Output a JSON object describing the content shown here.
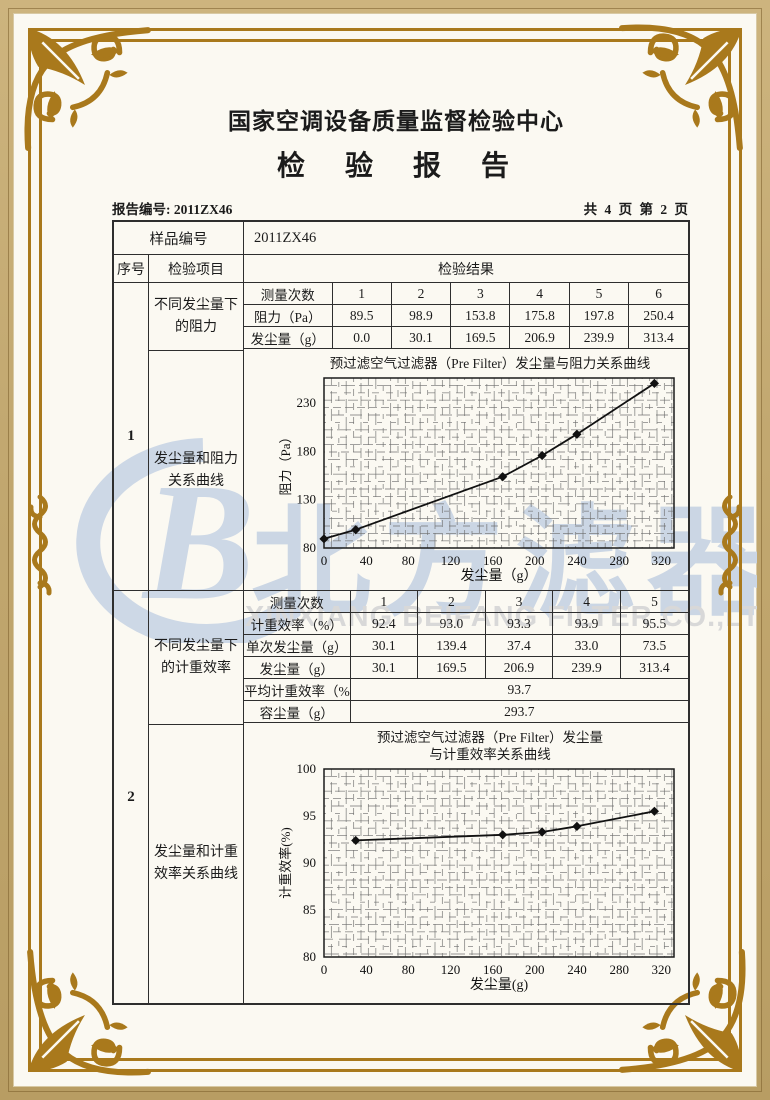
{
  "header": {
    "org": "国家空调设备质量监督检验中心",
    "title": "检　验　报　告"
  },
  "meta": {
    "report_no_label": "报告编号:",
    "report_no": "2011ZX46",
    "page_info": "共 4 页 第 2 页"
  },
  "sample": {
    "label": "样品编号",
    "value": "2011ZX46"
  },
  "columns": {
    "seq": "序号",
    "item": "检验项目",
    "result": "检验结果"
  },
  "section1": {
    "seq": "1",
    "item_top": "不同发尘量下的阻力",
    "item_bottom": "发尘量和阻力关系曲线",
    "table": {
      "rows": [
        {
          "label": "测量次数",
          "values": [
            "1",
            "2",
            "3",
            "4",
            "5",
            "6"
          ]
        },
        {
          "label": "阻力（Pa）",
          "values": [
            "89.5",
            "98.9",
            "153.8",
            "175.8",
            "197.8",
            "250.4"
          ]
        },
        {
          "label": "发尘量（g）",
          "values": [
            "0.0",
            "30.1",
            "169.5",
            "206.9",
            "239.9",
            "313.4"
          ]
        }
      ]
    }
  },
  "section2": {
    "seq": "2",
    "item_top": "不同发尘量下的计重效率",
    "item_bottom": "发尘量和计重效率关系曲线",
    "table": {
      "rows": [
        {
          "label": "测量次数",
          "values": [
            "1",
            "2",
            "3",
            "4",
            "5"
          ]
        },
        {
          "label": "计重效率（%）",
          "values": [
            "92.4",
            "93.0",
            "93.3",
            "93.9",
            "95.5"
          ]
        },
        {
          "label": "单次发尘量（g）",
          "values": [
            "30.1",
            "139.4",
            "37.4",
            "33.0",
            "73.5"
          ]
        },
        {
          "label": "发尘量（g）",
          "values": [
            "30.1",
            "169.5",
            "206.9",
            "239.9",
            "313.4"
          ]
        }
      ],
      "avg": {
        "label": "平均计重效率（%）",
        "value": "93.7"
      },
      "capacity": {
        "label": "容尘量（g）",
        "value": "293.7"
      }
    }
  },
  "watermark": {
    "cn": "北方滤器",
    "en": "XINXIANG BEIFANG FILTER CO.,LTD.",
    "logo_color": "#cdd8e6",
    "cn_color": "#cbd6e4",
    "en_color": "#d8d8d8"
  },
  "colors": {
    "frame_gold": "#a9791c",
    "paper": "#fbf9f2",
    "band": "#c2a870",
    "ink": "#1b1b1b"
  },
  "chart_data": [
    {
      "type": "line",
      "title": "预过滤空气过滤器（Pre Filter）发尘量与阻力关系曲线",
      "title2": "",
      "xlabel": "发尘量（g）",
      "ylabel": "阻力（Pa）",
      "x": [
        0,
        30.1,
        169.5,
        206.9,
        239.9,
        313.4
      ],
      "y": [
        89.5,
        98.9,
        153.8,
        175.8,
        197.8,
        250.4
      ],
      "xlim": [
        0,
        332
      ],
      "ylim": [
        80,
        256
      ],
      "xticks": [
        0,
        40,
        80,
        120,
        160,
        200,
        240,
        280,
        320
      ],
      "yticks": [
        80,
        130,
        180,
        230
      ],
      "grid": true,
      "marker": "diamond",
      "line_color": "#111111"
    },
    {
      "type": "line",
      "title": "预过滤空气过滤器（Pre Filter）发尘量",
      "title2": "与计重效率关系曲线",
      "xlabel": "发尘量(g)",
      "ylabel": "计重效率(%)",
      "x": [
        30.1,
        169.5,
        206.9,
        239.9,
        313.4
      ],
      "y": [
        92.4,
        93.0,
        93.3,
        93.9,
        95.5
      ],
      "xlim": [
        0,
        332
      ],
      "ylim": [
        80,
        100
      ],
      "xticks": [
        0,
        40,
        80,
        120,
        160,
        200,
        240,
        280,
        320
      ],
      "yticks": [
        80,
        85,
        90,
        95,
        100
      ],
      "grid": true,
      "marker": "diamond",
      "line_color": "#111111"
    }
  ]
}
